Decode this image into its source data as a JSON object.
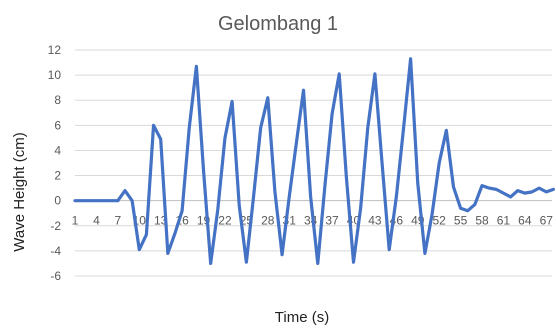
{
  "chart_data": {
    "type": "line",
    "title": "Gelombang 1",
    "xlabel": "Time (s)",
    "ylabel": "Wave Height (cm)",
    "ylim": [
      -6,
      12
    ],
    "y_ticks": [
      -6,
      -4,
      -2,
      0,
      2,
      4,
      6,
      8,
      10,
      12
    ],
    "x_tick_labels": [
      "1",
      "4",
      "7",
      "10",
      "13",
      "16",
      "19",
      "22",
      "25",
      "28",
      "31",
      "34",
      "37",
      "40",
      "43",
      "46",
      "49",
      "52",
      "55",
      "58",
      "61",
      "64",
      "67"
    ],
    "grid": true,
    "legend": false,
    "colors": {
      "line": "#4472c4",
      "grid": "#d9d9d9"
    },
    "x": [
      1,
      2,
      3,
      4,
      5,
      6,
      7,
      8,
      9,
      10,
      11,
      12,
      13,
      14,
      15,
      16,
      17,
      18,
      19,
      20,
      21,
      22,
      23,
      24,
      25,
      26,
      27,
      28,
      29,
      30,
      31,
      32,
      33,
      34,
      35,
      36,
      37,
      38,
      39,
      40,
      41,
      42,
      43,
      44,
      45,
      46,
      47,
      48,
      49,
      50,
      51,
      52,
      53,
      54,
      55,
      56,
      57,
      58,
      59,
      60,
      61,
      62,
      63,
      64,
      65,
      66,
      67,
      68
    ],
    "series": [
      {
        "values": [
          0,
          0,
          0,
          0,
          0,
          0,
          0,
          0.8,
          0,
          -3.9,
          -2.7,
          6.0,
          4.9,
          -4.2,
          -2.6,
          -0.8,
          5.8,
          10.7,
          2.4,
          -5.0,
          -0.7,
          5.0,
          7.9,
          -0.4,
          -4.9,
          0.3,
          5.8,
          8.2,
          0.7,
          -4.3,
          0.3,
          4.6,
          8.8,
          0.3,
          -5.0,
          1.2,
          6.9,
          10.1,
          1.9,
          -4.9,
          -0.6,
          5.8,
          10.1,
          3.0,
          -3.9,
          0.3,
          5.7,
          11.3,
          1.4,
          -4.2,
          -1.1,
          3.0,
          5.6,
          1.1,
          -0.6,
          -0.8,
          -0.3,
          1.2,
          1.0,
          0.9,
          0.6,
          0.3,
          0.8,
          0.6,
          0.7,
          1.0,
          0.7,
          0.9
        ]
      }
    ]
  }
}
